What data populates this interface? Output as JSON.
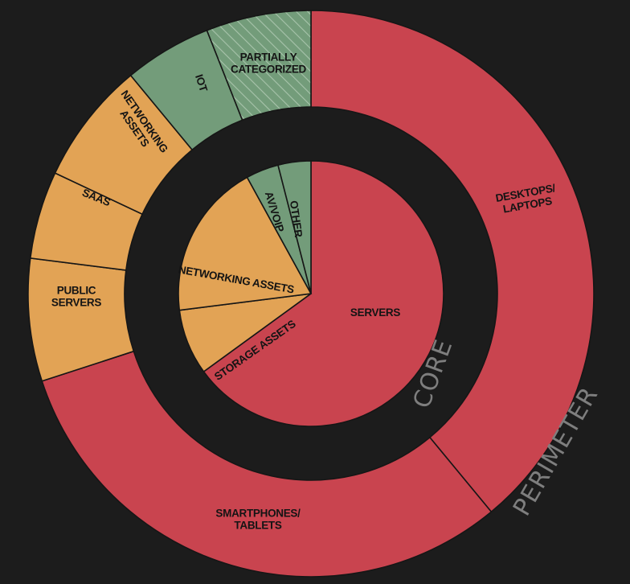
{
  "colors": {
    "background": "#1c1c1c",
    "red": "#c9444f",
    "orange": "#e2a355",
    "green": "#739c7a",
    "ring_label": "#7e7e7e"
  },
  "chart_data": {
    "type": "sunburst-donut",
    "rings": [
      {
        "name": "CORE",
        "segments": [
          {
            "label": "SERVERS",
            "value": 65,
            "color": "red"
          },
          {
            "label": "STORAGE ASSETS",
            "value": 8,
            "color": "orange"
          },
          {
            "label": "NETWORKING ASSETS",
            "value": 19,
            "color": "orange"
          },
          {
            "label": "AV/VOIP",
            "value": 4,
            "color": "green"
          },
          {
            "label": "OTHER",
            "value": 4,
            "color": "green"
          }
        ]
      },
      {
        "name": "PERIMETER",
        "segments": [
          {
            "label": "DESKTOPS/\nLAPTOPS",
            "value": 39,
            "color": "red"
          },
          {
            "label": "SMARTPHONES/\nTABLETS",
            "value": 31,
            "color": "red"
          },
          {
            "label": "PUBLIC\nSERVERS",
            "value": 7,
            "color": "orange"
          },
          {
            "label": "SAAS",
            "value": 5,
            "color": "orange"
          },
          {
            "label": "NETWORKING\nASSETS",
            "value": 7,
            "color": "orange"
          },
          {
            "label": "IOT",
            "value": 5,
            "color": "green"
          },
          {
            "label": "PARTIALLY\nCATEGORIZED",
            "value": 6,
            "color": "green",
            "pattern": "hatched"
          }
        ]
      }
    ]
  }
}
